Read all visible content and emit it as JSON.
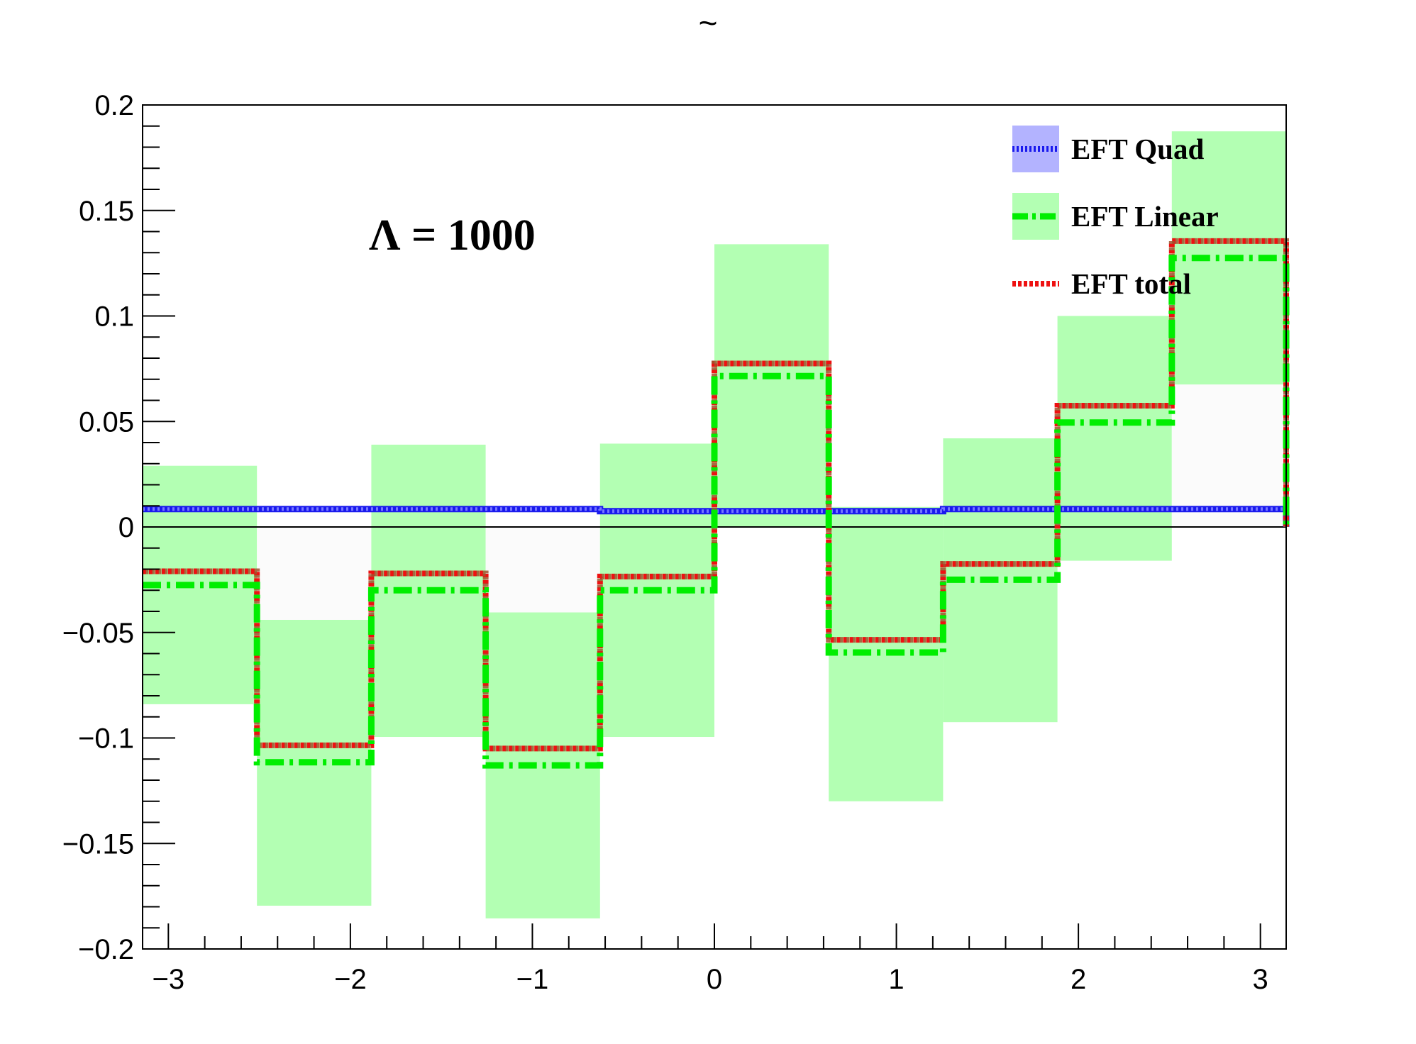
{
  "chart_data": {
    "type": "area",
    "title": "~",
    "xlabel": "",
    "ylabel": "",
    "xlim": [
      -3.14159,
      3.14159
    ],
    "ylim": [
      -0.2,
      0.2
    ],
    "x_ticks": [
      -3,
      -2,
      -1,
      0,
      1,
      2,
      3
    ],
    "x_tick_labels": [
      "−3",
      "−2",
      "−1",
      "0",
      "1",
      "2",
      "3"
    ],
    "y_ticks": [
      -0.2,
      -0.15,
      -0.1,
      -0.05,
      0,
      0.05,
      0.1,
      0.15,
      0.2
    ],
    "y_tick_labels": [
      "−0.2",
      "−0.15",
      "−0.1",
      "−0.05",
      "0",
      "0.05",
      "0.1",
      "0.15",
      "0.2"
    ],
    "annotation": "Λ = 1000",
    "legend_position": "top-right",
    "grid": false,
    "bin_edges": [
      -3.14159,
      -2.51327,
      -1.88496,
      -1.25664,
      -0.62832,
      0,
      0.62832,
      1.25664,
      1.88496,
      2.51327,
      3.14159
    ],
    "series": [
      {
        "name": "EFT Quad",
        "line_color": "#1a1aff",
        "fill_color": "#b3b3ff",
        "values": [
          0.0085,
          0.0085,
          0.0085,
          0.0085,
          0.0075,
          0.0075,
          0.0075,
          0.0085,
          0.0085,
          0.0085
        ]
      },
      {
        "name": "EFT Linear",
        "line_color": "#00ee00",
        "fill_color": "#b3ffb3",
        "values": [
          -0.0275,
          -0.1115,
          -0.03,
          -0.113,
          -0.03,
          0.0715,
          -0.0595,
          -0.025,
          0.0495,
          0.1275
        ],
        "band_low": [
          -0.084,
          -0.1795,
          -0.0995,
          -0.1855,
          -0.0995,
          0.0,
          -0.13,
          -0.0925,
          -0.016,
          0.0675
        ],
        "band_high": [
          0.029,
          -0.044,
          0.039,
          -0.0405,
          0.0395,
          0.134,
          0.0095,
          0.042,
          0.1,
          0.1875
        ]
      },
      {
        "name": "EFT total",
        "line_color": "#ee1111",
        "values": [
          -0.021,
          -0.1035,
          -0.022,
          -0.105,
          -0.0235,
          0.0775,
          -0.0535,
          -0.0175,
          0.0575,
          0.1355
        ]
      }
    ]
  }
}
